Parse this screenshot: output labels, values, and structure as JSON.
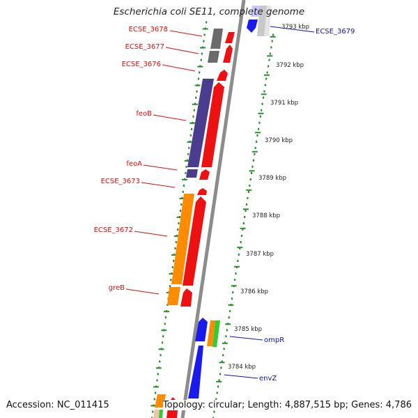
{
  "title": "Escherichia coli SE11, complete genome",
  "footer": {
    "accession": "Accession: NC_011415",
    "topology": "Topology: circular; Length: 4,887,515 bp; Genes: 4,786"
  },
  "colors": {
    "backbone": "#8c8c8c",
    "ring_dots": "#2e8b2e",
    "label_red": "#cc1111",
    "label_blue": "#1111aa",
    "forward": "#ee1111",
    "reverse_purple": "#4a3d8f",
    "reverse_orange": "#ff8c00",
    "blue": "#1a1aee",
    "green": "#33cc33",
    "gray": "#707070",
    "light_gray": "#c8c8c8"
  },
  "kbp_ticks": [
    "3793 kbp",
    "3792 kbp",
    "3791 kbp",
    "3790 kbp",
    "3789 kbp",
    "3788 kbp",
    "3787 kbp",
    "3786 kbp",
    "3785 kbp",
    "3784 kbp"
  ],
  "genes": [
    {
      "name": "ECSE_3678",
      "color": "label_red"
    },
    {
      "name": "ECSE_3677",
      "color": "label_red"
    },
    {
      "name": "ECSE_3676",
      "color": "label_red"
    },
    {
      "name": "feoB",
      "color": "label_red"
    },
    {
      "name": "feoA",
      "color": "label_red"
    },
    {
      "name": "ECSE_3673",
      "color": "label_red"
    },
    {
      "name": "ECSE_3672",
      "color": "label_red"
    },
    {
      "name": "greB",
      "color": "label_red"
    },
    {
      "name": "ECSE_3679",
      "color": "label_blue"
    },
    {
      "name": "ompR",
      "color": "label_blue"
    },
    {
      "name": "envZ",
      "color": "label_blue"
    }
  ]
}
